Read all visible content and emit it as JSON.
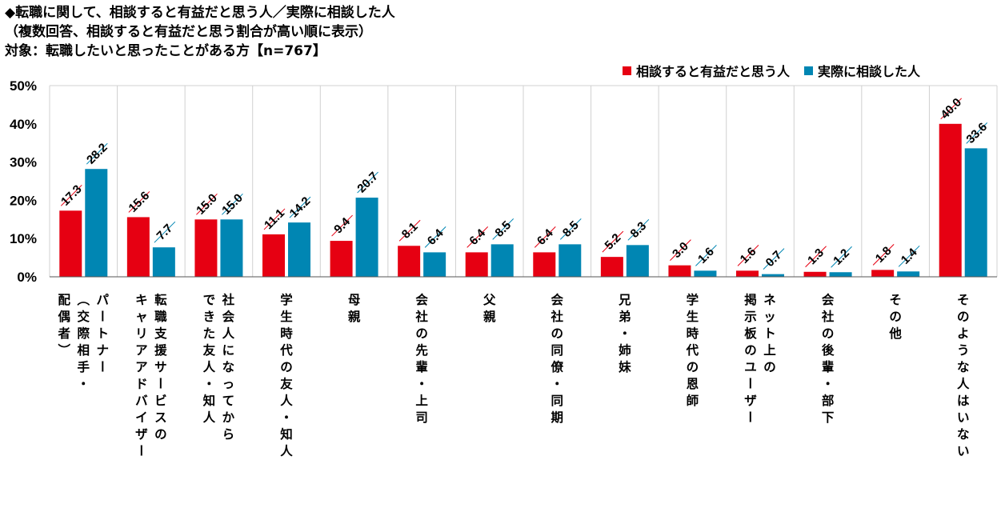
{
  "title": {
    "line1": "◆転職に関して、相談すると有益だと思う人／実際に相談した人",
    "line2": "（複数回答、相談すると有益だと思う割合が高い順に表示）",
    "line3": "対象：転職したいと思ったことがある方【n=767】"
  },
  "colors": {
    "series1": "#e60012",
    "series2": "#0086b3",
    "grid": "#d0d0d0"
  },
  "chart_data": {
    "type": "bar",
    "ylim": [
      0,
      50
    ],
    "yticks": [
      "0%",
      "10%",
      "20%",
      "30%",
      "40%",
      "50%"
    ],
    "ytick_values": [
      0,
      10,
      20,
      30,
      40,
      50
    ],
    "legend_position": "top-right",
    "categories": [
      "パートナー（交際相手・配偶者）",
      "転職支援サービスのキャリアアドバイザー",
      "社会人になってからできた友人・知人",
      "学生時代の友人・知人",
      "母親",
      "会社の先輩・上司",
      "父親",
      "会社の同僚・同期",
      "兄弟・姉妹",
      "学生時代の恩師",
      "ネット上の掲示板のユーザー",
      "会社の後輩・部下",
      "その他",
      "そのような人はいない"
    ],
    "category_columns": [
      [
        "パートナー",
        "（交際相手・",
        "配偶者）"
      ],
      [
        "転職支援サービスの",
        "キャリアアドバイザー"
      ],
      [
        "社会人になってから",
        "できた友人・知人"
      ],
      [
        "学生時代の友人・知人"
      ],
      [
        "母親"
      ],
      [
        "会社の先輩・上司"
      ],
      [
        "父親"
      ],
      [
        "会社の同僚・同期"
      ],
      [
        "兄弟・姉妹"
      ],
      [
        "学生時代の恩師"
      ],
      [
        "ネット上の",
        "掲示板のユーザー"
      ],
      [
        "会社の後輩・部下"
      ],
      [
        "その他"
      ],
      [
        "そのような人はいない"
      ]
    ],
    "series": [
      {
        "name": "相談すると有益だと思う人",
        "values": [
          17.3,
          15.6,
          15.0,
          11.1,
          9.4,
          8.1,
          6.4,
          6.4,
          5.2,
          3.0,
          1.6,
          1.3,
          1.8,
          40.0
        ]
      },
      {
        "name": "実際に相談した人",
        "values": [
          28.2,
          7.7,
          15.0,
          14.2,
          20.7,
          6.4,
          8.5,
          8.5,
          8.3,
          1.6,
          0.7,
          1.2,
          1.4,
          33.6
        ]
      }
    ]
  }
}
